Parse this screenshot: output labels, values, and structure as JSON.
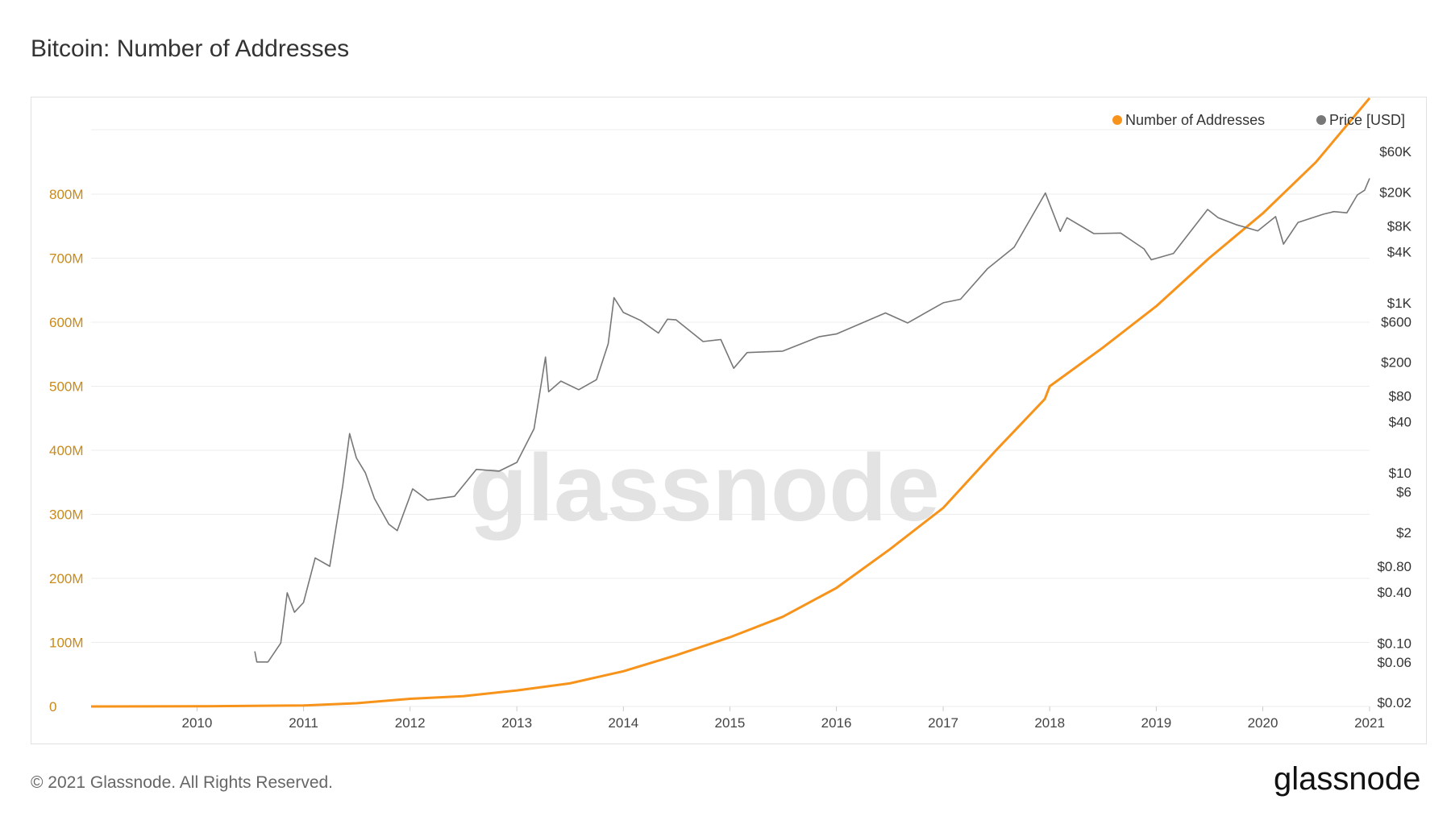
{
  "title": "Bitcoin: Number of Addresses",
  "footer": {
    "copyright": "© 2021 Glassnode. All Rights Reserved.",
    "logo_text": "glassnode"
  },
  "watermark": "glassnode",
  "colors": {
    "addresses": "#f7931a",
    "price": "#777777",
    "left_axis": "#c98a1a",
    "grid": "#ececec"
  },
  "chart_data": {
    "type": "line",
    "title": "Bitcoin: Number of Addresses",
    "legend": {
      "placement": "top-right",
      "entries": [
        "Number of Addresses",
        "Price [USD]"
      ]
    },
    "grid": true,
    "x_ticks": [
      "2010",
      "2011",
      "2012",
      "2013",
      "2014",
      "2015",
      "2016",
      "2017",
      "2018",
      "2019",
      "2020",
      "2021"
    ],
    "xlim": [
      "2009-01-03",
      "2021-01-01"
    ],
    "left_axis": {
      "series": "Number of Addresses",
      "ylim": [
        0,
        900000000
      ],
      "ticks": [
        "0",
        "100M",
        "200M",
        "300M",
        "400M",
        "500M",
        "600M",
        "700M",
        "800M"
      ],
      "tick_values": [
        0,
        100000000,
        200000000,
        300000000,
        400000000,
        500000000,
        600000000,
        700000000,
        800000000
      ]
    },
    "right_axis": {
      "series": "Price [USD]",
      "scale": "log",
      "ylim": [
        0.018,
        70000
      ],
      "ticks": [
        "$60K",
        "$20K",
        "$8K",
        "$4K",
        "$1K",
        "$600",
        "$200",
        "$80",
        "$40",
        "$10",
        "$6",
        "$2",
        "$0.80",
        "$0.40",
        "$0.10",
        "$0.06",
        "$0.02"
      ],
      "tick_values": [
        60000,
        20000,
        8000,
        4000,
        1000,
        600,
        200,
        80,
        40,
        10,
        6,
        2,
        0.8,
        0.4,
        0.1,
        0.06,
        0.02
      ]
    },
    "series": [
      {
        "name": "Number of Addresses",
        "axis": "left",
        "points": [
          [
            "2009-01-03",
            0
          ],
          [
            "2010-01-01",
            200000
          ],
          [
            "2011-01-01",
            1500000
          ],
          [
            "2011-07-01",
            5000000
          ],
          [
            "2012-01-01",
            12000000
          ],
          [
            "2012-07-01",
            16000000
          ],
          [
            "2013-01-01",
            25000000
          ],
          [
            "2013-07-01",
            36000000
          ],
          [
            "2014-01-01",
            55000000
          ],
          [
            "2014-07-01",
            80000000
          ],
          [
            "2015-01-01",
            108000000
          ],
          [
            "2015-07-01",
            140000000
          ],
          [
            "2016-01-01",
            185000000
          ],
          [
            "2016-07-01",
            245000000
          ],
          [
            "2017-01-01",
            310000000
          ],
          [
            "2017-07-01",
            400000000
          ],
          [
            "2017-12-15",
            480000000
          ],
          [
            "2018-01-01",
            500000000
          ],
          [
            "2018-07-01",
            560000000
          ],
          [
            "2019-01-01",
            625000000
          ],
          [
            "2019-07-01",
            700000000
          ],
          [
            "2020-01-01",
            770000000
          ],
          [
            "2020-07-01",
            850000000
          ],
          [
            "2021-01-01",
            950000000
          ]
        ]
      },
      {
        "name": "Price [USD]",
        "axis": "right",
        "points": [
          [
            "2010-07-18",
            0.08
          ],
          [
            "2010-07-25",
            0.06
          ],
          [
            "2010-09-01",
            0.06
          ],
          [
            "2010-10-15",
            0.1
          ],
          [
            "2010-11-06",
            0.39
          ],
          [
            "2010-12-01",
            0.23
          ],
          [
            "2011-01-01",
            0.3
          ],
          [
            "2011-02-10",
            1.0
          ],
          [
            "2011-04-01",
            0.8
          ],
          [
            "2011-05-15",
            7
          ],
          [
            "2011-06-08",
            29
          ],
          [
            "2011-07-01",
            15
          ],
          [
            "2011-08-01",
            10
          ],
          [
            "2011-09-01",
            5
          ],
          [
            "2011-10-20",
            2.5
          ],
          [
            "2011-11-18",
            2.1
          ],
          [
            "2012-01-10",
            6.5
          ],
          [
            "2012-03-01",
            4.8
          ],
          [
            "2012-06-01",
            5.3
          ],
          [
            "2012-08-15",
            11
          ],
          [
            "2012-11-01",
            10.5
          ],
          [
            "2013-01-01",
            13.3
          ],
          [
            "2013-03-01",
            33
          ],
          [
            "2013-04-09",
            230
          ],
          [
            "2013-04-20",
            90
          ],
          [
            "2013-06-01",
            120
          ],
          [
            "2013-08-01",
            95
          ],
          [
            "2013-10-01",
            125
          ],
          [
            "2013-11-10",
            330
          ],
          [
            "2013-11-30",
            1150
          ],
          [
            "2014-01-01",
            770
          ],
          [
            "2014-03-01",
            620
          ],
          [
            "2014-05-01",
            440
          ],
          [
            "2014-06-01",
            640
          ],
          [
            "2014-07-01",
            630
          ],
          [
            "2014-10-01",
            350
          ],
          [
            "2014-12-01",
            370
          ],
          [
            "2015-01-14",
            170
          ],
          [
            "2015-03-01",
            260
          ],
          [
            "2015-07-01",
            270
          ],
          [
            "2015-11-04",
            400
          ],
          [
            "2016-01-01",
            430
          ],
          [
            "2016-06-17",
            760
          ],
          [
            "2016-09-01",
            580
          ],
          [
            "2017-01-01",
            1000
          ],
          [
            "2017-03-01",
            1100
          ],
          [
            "2017-06-01",
            2500
          ],
          [
            "2017-09-01",
            4500
          ],
          [
            "2017-12-17",
            19500
          ],
          [
            "2018-02-06",
            6900
          ],
          [
            "2018-03-01",
            10000
          ],
          [
            "2018-06-01",
            6500
          ],
          [
            "2018-09-01",
            6600
          ],
          [
            "2018-11-20",
            4300
          ],
          [
            "2018-12-15",
            3200
          ],
          [
            "2019-03-01",
            3800
          ],
          [
            "2019-06-26",
            12500
          ],
          [
            "2019-08-01",
            10000
          ],
          [
            "2019-10-01",
            8300
          ],
          [
            "2019-12-15",
            7000
          ],
          [
            "2020-02-14",
            10300
          ],
          [
            "2020-03-12",
            4900
          ],
          [
            "2020-05-01",
            8800
          ],
          [
            "2020-07-27",
            11000
          ],
          [
            "2020-09-01",
            11800
          ],
          [
            "2020-10-15",
            11400
          ],
          [
            "2020-11-20",
            18500
          ],
          [
            "2020-12-15",
            21000
          ],
          [
            "2021-01-01",
            29000
          ]
        ]
      }
    ]
  }
}
